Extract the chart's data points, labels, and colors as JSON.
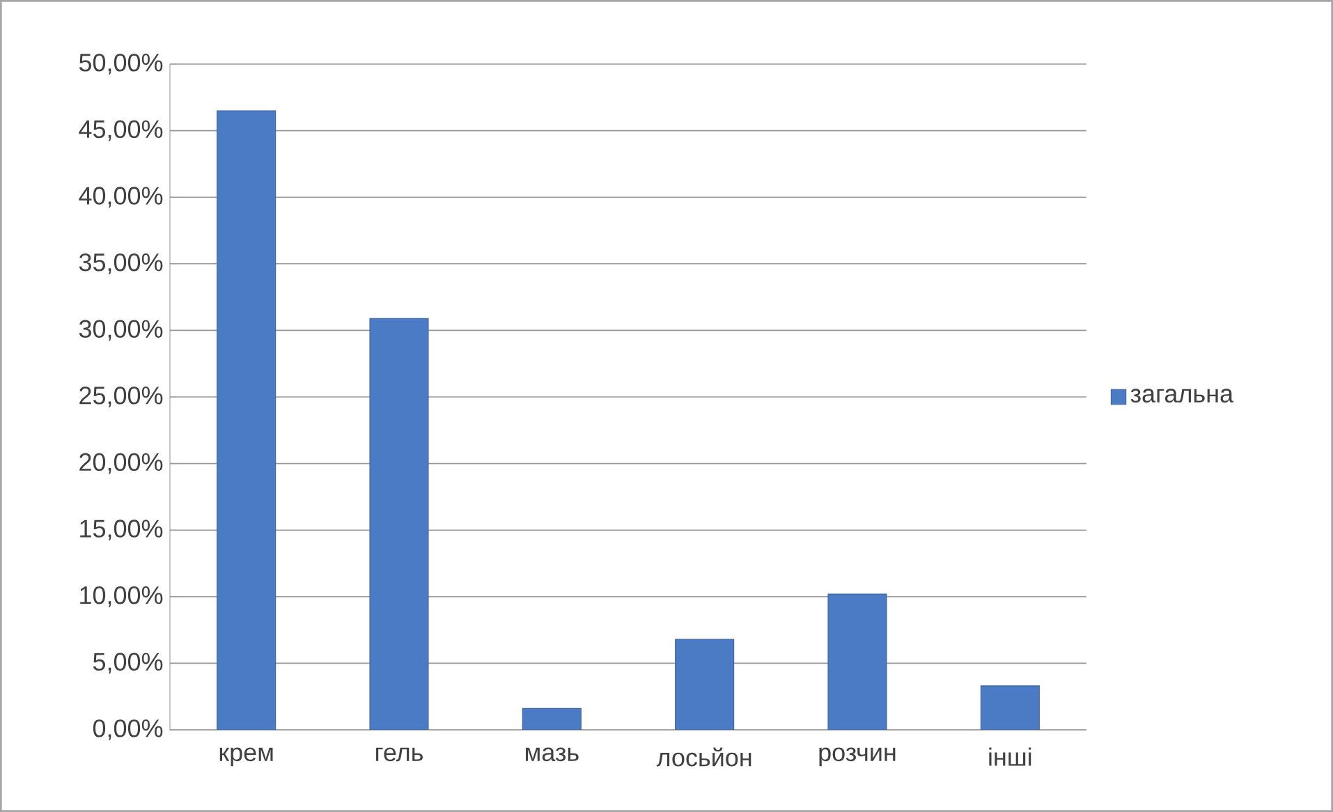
{
  "chart_data": {
    "type": "bar",
    "categories": [
      "крем",
      "гель",
      "мазь",
      "лосьйон",
      "розчин",
      "інші"
    ],
    "series": [
      {
        "name": "загальна",
        "color": "#4a7bc4",
        "values": [
          46.5,
          30.9,
          1.6,
          6.8,
          10.2,
          3.3
        ]
      }
    ],
    "ylim": [
      0,
      50
    ],
    "yticks": [
      {
        "value": 0,
        "label": "0,00%"
      },
      {
        "value": 5,
        "label": "5,00%"
      },
      {
        "value": 10,
        "label": "10,00%"
      },
      {
        "value": 15,
        "label": "15,00%"
      },
      {
        "value": 20,
        "label": "20,00%"
      },
      {
        "value": 25,
        "label": "25,00%"
      },
      {
        "value": 30,
        "label": "30,00%"
      },
      {
        "value": 35,
        "label": "35,00%"
      },
      {
        "value": 40,
        "label": "40,00%"
      },
      {
        "value": 45,
        "label": "45,00%"
      },
      {
        "value": 50,
        "label": "50,00%"
      }
    ],
    "grid": "y",
    "legend": "right"
  }
}
